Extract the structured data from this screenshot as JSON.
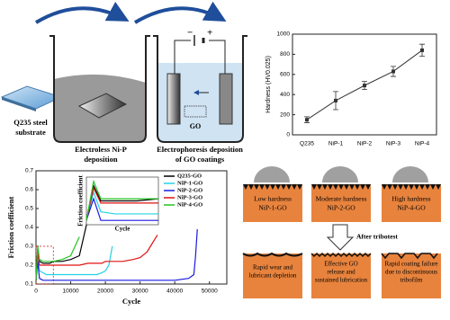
{
  "illustration": {
    "substrate_label": [
      "Q235 steel",
      "substrate"
    ],
    "step1_label": [
      "Electroless Ni-P",
      "deposition"
    ],
    "step2_label": [
      "Electrophoresis deposition",
      "of GO coatings"
    ],
    "go_label": "GO",
    "minus_label": "−",
    "plus_label": "+"
  },
  "chart_data": [
    {
      "type": "line",
      "ylabel": "Hardness (HV0.025)",
      "categories": [
        "Q235",
        "NiP-1",
        "NiP-2",
        "NiP-3",
        "NiP-4"
      ],
      "values": [
        150,
        340,
        490,
        630,
        840
      ],
      "errors": [
        30,
        90,
        40,
        50,
        60
      ],
      "color": "#333333",
      "ylim": [
        0,
        1000
      ],
      "yticks": [
        0,
        200,
        400,
        600,
        800,
        1000
      ]
    },
    {
      "type": "line",
      "xlabel": "Cycle",
      "ylabel": "Friction coefficient",
      "legend": "upper right",
      "x": [
        0,
        500,
        1000,
        2000,
        3000,
        4000,
        5000,
        7500,
        10000,
        12500,
        15000,
        17500,
        19000,
        20000,
        21000,
        22000,
        25000,
        28000,
        30000,
        32000,
        33000,
        34000,
        35000,
        40000,
        44000,
        45500,
        46000,
        46500
      ],
      "xlim": [
        0,
        55000
      ],
      "xticks": [
        0,
        10000,
        20000,
        30000,
        40000,
        50000
      ],
      "ylim": [
        0.1,
        0.7
      ],
      "yticks": [
        0.1,
        0.2,
        0.3,
        0.4,
        0.5,
        0.6,
        0.7
      ],
      "series": [
        {
          "name": "Q235-GO",
          "color": "#000000",
          "values": [
            0.12,
            0.28,
            0.22,
            0.21,
            0.21,
            0.21,
            0.22,
            0.22,
            0.23,
            0.25,
            0.45,
            null,
            null,
            null,
            null,
            null,
            null,
            null,
            null,
            null,
            null,
            null,
            null,
            null,
            null,
            null,
            null,
            null
          ]
        },
        {
          "name": "NiP-1-GO",
          "color": "#22d3e6",
          "values": [
            0.12,
            0.25,
            0.17,
            0.16,
            0.15,
            0.15,
            0.15,
            0.15,
            0.15,
            0.15,
            0.15,
            0.15,
            0.16,
            0.17,
            0.2,
            0.3,
            null,
            null,
            null,
            null,
            null,
            null,
            null,
            null,
            null,
            null,
            null,
            null
          ]
        },
        {
          "name": "NiP-2-GO",
          "color": "#1a1ae0",
          "values": [
            0.12,
            0.22,
            0.13,
            0.12,
            0.12,
            0.12,
            0.12,
            0.12,
            0.12,
            0.12,
            0.12,
            0.12,
            0.12,
            0.12,
            0.12,
            0.12,
            0.12,
            0.12,
            0.12,
            0.12,
            0.12,
            0.12,
            0.12,
            0.12,
            0.13,
            0.15,
            0.25,
            0.39
          ]
        },
        {
          "name": "NiP-3-GO",
          "color": "#e01010",
          "values": [
            0.12,
            0.27,
            0.2,
            0.2,
            0.2,
            0.2,
            0.2,
            0.2,
            0.2,
            0.2,
            0.21,
            0.21,
            0.21,
            0.22,
            0.22,
            0.22,
            0.22,
            0.23,
            0.24,
            0.27,
            0.3,
            0.33,
            0.36,
            null,
            null,
            null,
            null,
            null
          ]
        },
        {
          "name": "NiP-4-GO",
          "color": "#22c422",
          "values": [
            0.12,
            0.3,
            0.23,
            0.22,
            0.22,
            0.22,
            0.22,
            0.23,
            0.25,
            0.35,
            null,
            null,
            null,
            null,
            null,
            null,
            null,
            null,
            null,
            null,
            null,
            null,
            null,
            null,
            null,
            null,
            null,
            null
          ]
        }
      ]
    },
    {
      "type": "line",
      "xlabel": "Cycle",
      "ylabel": "Friction coefficient",
      "x": [
        0,
        500,
        1000,
        2000,
        3500,
        5000
      ],
      "xlim": [
        0,
        5000
      ],
      "ylim": [
        0.1,
        0.32
      ],
      "series": [
        {
          "color": "#000000",
          "values": [
            0.12,
            0.28,
            0.21,
            0.21,
            0.21,
            0.22
          ]
        },
        {
          "color": "#22d3e6",
          "values": [
            0.12,
            0.25,
            0.16,
            0.15,
            0.15,
            0.15
          ]
        },
        {
          "color": "#1a1ae0",
          "values": [
            0.12,
            0.22,
            0.12,
            0.12,
            0.12,
            0.12
          ]
        },
        {
          "color": "#e01010",
          "values": [
            0.12,
            0.27,
            0.2,
            0.2,
            0.2,
            0.2
          ]
        },
        {
          "color": "#22c422",
          "values": [
            0.12,
            0.3,
            0.22,
            0.22,
            0.22,
            0.22
          ]
        }
      ]
    }
  ],
  "schematic": {
    "before": [
      [
        "Low hardness",
        "NiP-1-GO"
      ],
      [
        "Moderate hardness",
        "NiP-2-GO"
      ],
      [
        "High hardness",
        "NiP-4-GO"
      ]
    ],
    "arrow_label": "After tribotest",
    "after": [
      [
        "Rapid wear and",
        "lubricant depletion"
      ],
      [
        "Effective GO",
        "release and",
        "sustained lubrication"
      ],
      [
        "Rapid coating failure",
        "due to discontinuous",
        "tribofilm"
      ]
    ]
  }
}
